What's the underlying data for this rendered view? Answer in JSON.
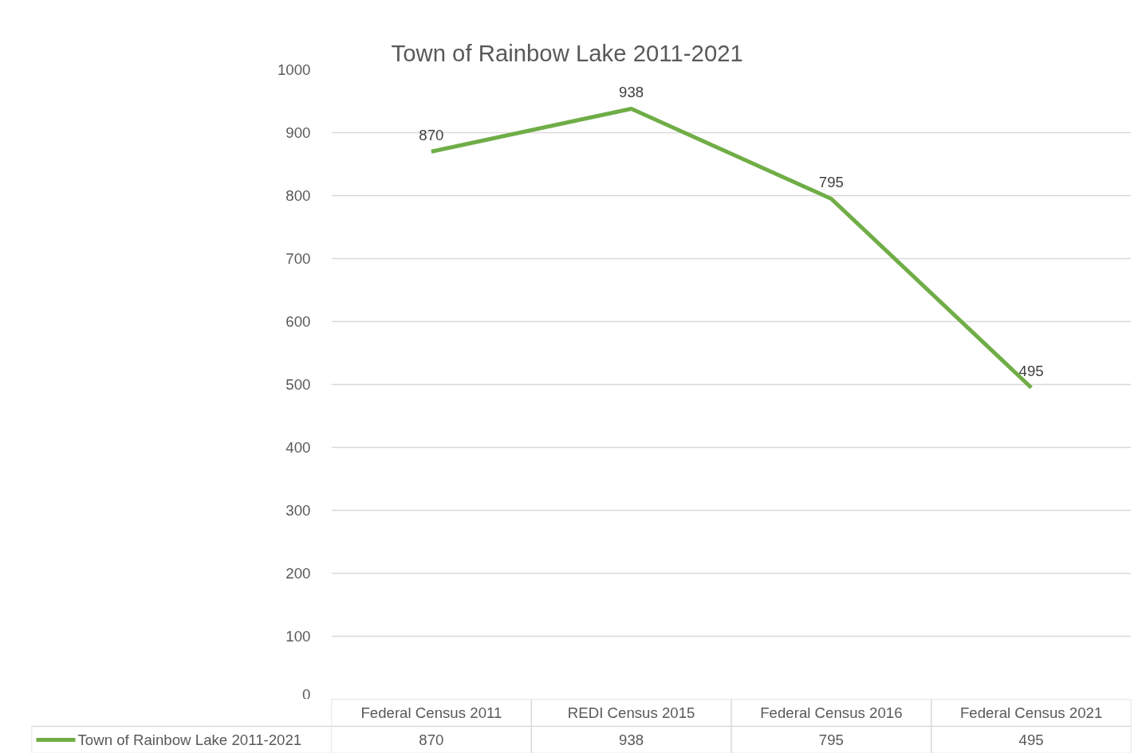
{
  "chart_data": {
    "type": "line",
    "title": "Town of Rainbow Lake 2011-2021",
    "categories": [
      "Federal Census 2011",
      "REDI Census 2015",
      "Federal Census 2016",
      "Federal Census 2021"
    ],
    "series": [
      {
        "name": "Town of Rainbow Lake 2011-2021",
        "color": "#70ad47",
        "values": [
          870,
          938,
          795,
          495
        ]
      }
    ],
    "annotations": [
      {
        "text": "870",
        "x": "Federal Census 2011",
        "y": 870
      },
      {
        "text": "938",
        "x": "REDI Census 2015",
        "y": 938
      },
      {
        "text": "795",
        "x": "Federal Census 2016",
        "y": 795
      },
      {
        "text": "495",
        "x": "Federal Census 2021",
        "y": 495
      }
    ],
    "ylim": [
      0,
      1000
    ],
    "yticks": [
      0,
      100,
      200,
      300,
      400,
      500,
      600,
      700,
      800,
      900,
      1000
    ],
    "grid": "y",
    "data_labels": true,
    "legend": "bottom",
    "marker": "none",
    "line_style": "solid"
  }
}
